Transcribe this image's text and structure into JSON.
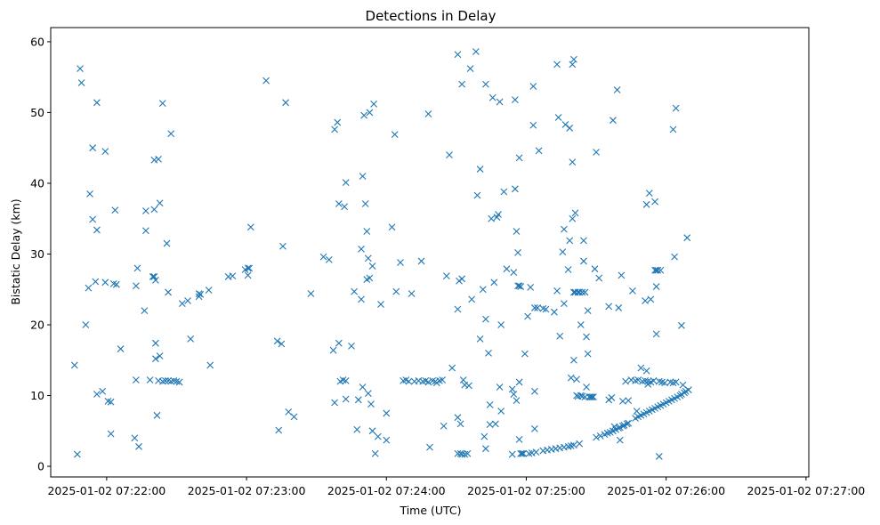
{
  "chart_data": {
    "type": "scatter",
    "title": "Detections in Delay",
    "xlabel": "Time (UTC)",
    "ylabel": "Bistatic Delay (km)",
    "marker": "x",
    "color": "#1f77b4",
    "x_unit": "minutes after 2025-01-02 07:21:00",
    "xlim": [
      0.6,
      6.02
    ],
    "ylim": [
      -1.5,
      62
    ],
    "xticks": [
      {
        "value": 1,
        "label": "2025-01-02 07:22:00"
      },
      {
        "value": 2,
        "label": "2025-01-02 07:23:00"
      },
      {
        "value": 3,
        "label": "2025-01-02 07:24:00"
      },
      {
        "value": 4,
        "label": "2025-01-02 07:25:00"
      },
      {
        "value": 5,
        "label": "2025-01-02 07:26:00"
      },
      {
        "value": 6,
        "label": "2025-01-02 07:27:00"
      }
    ],
    "yticks": [
      {
        "value": 0,
        "label": "0"
      },
      {
        "value": 10,
        "label": "10"
      },
      {
        "value": 20,
        "label": "20"
      },
      {
        "value": 30,
        "label": "30"
      },
      {
        "value": 40,
        "label": "40"
      },
      {
        "value": 50,
        "label": "50"
      },
      {
        "value": 60,
        "label": "60"
      }
    ],
    "points": [
      [
        0.77,
        14.3
      ],
      [
        0.79,
        1.7
      ],
      [
        0.81,
        56.2
      ],
      [
        0.82,
        54.2
      ],
      [
        0.85,
        20.0
      ],
      [
        0.87,
        25.2
      ],
      [
        0.88,
        38.5
      ],
      [
        0.9,
        45.0
      ],
      [
        0.9,
        34.9
      ],
      [
        0.92,
        26.1
      ],
      [
        0.93,
        51.4
      ],
      [
        0.93,
        33.4
      ],
      [
        0.93,
        10.2
      ],
      [
        0.97,
        10.6
      ],
      [
        0.99,
        44.5
      ],
      [
        0.99,
        26.0
      ],
      [
        1.01,
        9.2
      ],
      [
        1.03,
        4.6
      ],
      [
        1.03,
        9.1
      ],
      [
        1.05,
        25.8
      ],
      [
        1.06,
        36.2
      ],
      [
        1.07,
        25.7
      ],
      [
        1.1,
        16.6
      ],
      [
        1.2,
        4.0
      ],
      [
        1.21,
        25.5
      ],
      [
        1.21,
        12.2
      ],
      [
        1.22,
        28.0
      ],
      [
        1.23,
        2.8
      ],
      [
        1.27,
        22.0
      ],
      [
        1.28,
        36.1
      ],
      [
        1.28,
        33.3
      ],
      [
        1.31,
        12.2
      ],
      [
        1.33,
        26.8
      ],
      [
        1.34,
        26.8
      ],
      [
        1.34,
        43.3
      ],
      [
        1.34,
        36.3
      ],
      [
        1.35,
        26.3
      ],
      [
        1.35,
        17.4
      ],
      [
        1.35,
        15.2
      ],
      [
        1.36,
        7.2
      ],
      [
        1.37,
        43.4
      ],
      [
        1.37,
        12.1
      ],
      [
        1.38,
        37.2
      ],
      [
        1.38,
        15.6
      ],
      [
        1.4,
        51.3
      ],
      [
        1.4,
        12.0
      ],
      [
        1.42,
        12.1
      ],
      [
        1.43,
        31.5
      ],
      [
        1.44,
        24.6
      ],
      [
        1.44,
        12.1
      ],
      [
        1.46,
        12.0
      ],
      [
        1.46,
        47.0
      ],
      [
        1.48,
        12.1
      ],
      [
        1.5,
        12.0
      ],
      [
        1.52,
        11.9
      ],
      [
        1.54,
        23.0
      ],
      [
        1.58,
        23.4
      ],
      [
        1.6,
        18.0
      ],
      [
        1.66,
        24.4
      ],
      [
        1.66,
        24.0
      ],
      [
        1.67,
        24.3
      ],
      [
        1.73,
        24.9
      ],
      [
        1.74,
        14.3
      ],
      [
        1.87,
        26.8
      ],
      [
        1.9,
        26.9
      ],
      [
        1.99,
        27.8
      ],
      [
        2.01,
        27.0
      ],
      [
        2.01,
        28.0
      ],
      [
        2.02,
        28.0
      ],
      [
        2.03,
        33.8
      ],
      [
        2.14,
        54.5
      ],
      [
        2.22,
        17.7
      ],
      [
        2.23,
        5.1
      ],
      [
        2.25,
        17.3
      ],
      [
        2.26,
        31.1
      ],
      [
        2.28,
        51.4
      ],
      [
        2.3,
        7.7
      ],
      [
        2.34,
        7.0
      ],
      [
        2.46,
        24.4
      ],
      [
        2.55,
        29.6
      ],
      [
        2.59,
        29.2
      ],
      [
        2.62,
        16.4
      ],
      [
        2.63,
        47.6
      ],
      [
        2.63,
        9.0
      ],
      [
        2.65,
        48.6
      ],
      [
        2.66,
        37.1
      ],
      [
        2.66,
        17.4
      ],
      [
        2.67,
        12.0
      ],
      [
        2.69,
        12.2
      ],
      [
        2.7,
        36.7
      ],
      [
        2.71,
        40.1
      ],
      [
        2.71,
        9.5
      ],
      [
        2.71,
        12.1
      ],
      [
        2.75,
        17.0
      ],
      [
        2.77,
        24.7
      ],
      [
        2.79,
        5.2
      ],
      [
        2.8,
        9.4
      ],
      [
        2.82,
        30.7
      ],
      [
        2.82,
        23.6
      ],
      [
        2.83,
        11.2
      ],
      [
        2.83,
        41.0
      ],
      [
        2.84,
        49.6
      ],
      [
        2.85,
        37.1
      ],
      [
        2.86,
        33.2
      ],
      [
        2.86,
        26.4
      ],
      [
        2.87,
        10.3
      ],
      [
        2.87,
        29.4
      ],
      [
        2.88,
        26.6
      ],
      [
        2.88,
        50.0
      ],
      [
        2.89,
        8.8
      ],
      [
        2.9,
        5.0
      ],
      [
        2.9,
        28.3
      ],
      [
        2.91,
        51.2
      ],
      [
        2.92,
        1.8
      ],
      [
        2.94,
        4.2
      ],
      [
        2.96,
        22.9
      ],
      [
        3.0,
        7.5
      ],
      [
        3.0,
        3.7
      ],
      [
        3.04,
        33.8
      ],
      [
        3.06,
        46.9
      ],
      [
        3.07,
        24.7
      ],
      [
        3.1,
        28.8
      ],
      [
        3.12,
        12.1
      ],
      [
        3.14,
        12.2
      ],
      [
        3.16,
        12.0
      ],
      [
        3.18,
        24.4
      ],
      [
        3.2,
        12.0
      ],
      [
        3.23,
        12.1
      ],
      [
        3.25,
        29.0
      ],
      [
        3.26,
        12.0
      ],
      [
        3.28,
        12.1
      ],
      [
        3.3,
        49.8
      ],
      [
        3.3,
        11.9
      ],
      [
        3.31,
        2.7
      ],
      [
        3.33,
        12.1
      ],
      [
        3.35,
        12.0
      ],
      [
        3.36,
        11.8
      ],
      [
        3.38,
        12.1
      ],
      [
        3.4,
        12.2
      ],
      [
        3.41,
        5.7
      ],
      [
        3.43,
        26.9
      ],
      [
        3.45,
        44.0
      ],
      [
        3.47,
        13.9
      ],
      [
        3.51,
        58.2
      ],
      [
        3.51,
        22.2
      ],
      [
        3.51,
        1.8
      ],
      [
        3.51,
        6.9
      ],
      [
        3.52,
        26.2
      ],
      [
        3.53,
        6.0
      ],
      [
        3.53,
        1.8
      ],
      [
        3.54,
        54.0
      ],
      [
        3.54,
        26.5
      ],
      [
        3.54,
        1.7
      ],
      [
        3.55,
        12.2
      ],
      [
        3.56,
        1.7
      ],
      [
        3.56,
        11.5
      ],
      [
        3.58,
        1.8
      ],
      [
        3.59,
        11.4
      ],
      [
        3.6,
        56.2
      ],
      [
        3.61,
        23.6
      ],
      [
        3.64,
        58.6
      ],
      [
        3.65,
        38.3
      ],
      [
        3.67,
        42.0
      ],
      [
        3.67,
        18.0
      ],
      [
        3.69,
        25.0
      ],
      [
        3.7,
        4.2
      ],
      [
        3.71,
        2.5
      ],
      [
        3.71,
        54.0
      ],
      [
        3.71,
        20.8
      ],
      [
        3.73,
        16.0
      ],
      [
        3.74,
        8.7
      ],
      [
        3.74,
        5.9
      ],
      [
        3.75,
        35.0
      ],
      [
        3.76,
        52.1
      ],
      [
        3.77,
        26.0
      ],
      [
        3.78,
        6.0
      ],
      [
        3.79,
        35.2
      ],
      [
        3.8,
        35.6
      ],
      [
        3.81,
        11.2
      ],
      [
        3.81,
        51.5
      ],
      [
        3.82,
        20.0
      ],
      [
        3.82,
        7.8
      ],
      [
        3.84,
        38.8
      ],
      [
        3.86,
        27.9
      ],
      [
        3.9,
        10.9
      ],
      [
        3.9,
        1.7
      ],
      [
        3.91,
        27.4
      ],
      [
        3.91,
        10.2
      ],
      [
        3.92,
        39.2
      ],
      [
        3.92,
        51.8
      ],
      [
        3.93,
        33.2
      ],
      [
        3.93,
        9.3
      ],
      [
        3.94,
        30.2
      ],
      [
        3.94,
        25.5
      ],
      [
        3.95,
        25.5
      ],
      [
        3.95,
        43.6
      ],
      [
        3.95,
        11.9
      ],
      [
        3.95,
        3.8
      ],
      [
        3.96,
        25.4
      ],
      [
        3.96,
        1.8
      ],
      [
        3.97,
        1.8
      ],
      [
        3.98,
        1.8
      ],
      [
        3.99,
        15.9
      ],
      [
        4.01,
        21.2
      ],
      [
        4.02,
        1.8
      ],
      [
        4.03,
        25.3
      ],
      [
        4.04,
        1.9
      ],
      [
        4.05,
        53.7
      ],
      [
        4.05,
        48.2
      ],
      [
        4.06,
        22.4
      ],
      [
        4.06,
        10.6
      ],
      [
        4.06,
        5.3
      ],
      [
        4.07,
        2.0
      ],
      [
        4.08,
        22.4
      ],
      [
        4.09,
        44.6
      ],
      [
        4.12,
        22.3
      ],
      [
        4.12,
        2.2
      ],
      [
        4.14,
        22.2
      ],
      [
        4.15,
        2.3
      ],
      [
        4.18,
        2.4
      ],
      [
        4.2,
        21.8
      ],
      [
        4.21,
        2.5
      ],
      [
        4.22,
        24.8
      ],
      [
        4.22,
        56.8
      ],
      [
        4.23,
        49.3
      ],
      [
        4.24,
        2.6
      ],
      [
        4.24,
        18.4
      ],
      [
        4.26,
        30.3
      ],
      [
        4.27,
        2.7
      ],
      [
        4.27,
        33.5
      ],
      [
        4.27,
        23.0
      ],
      [
        4.28,
        48.3
      ],
      [
        4.3,
        2.8
      ],
      [
        4.3,
        27.8
      ],
      [
        4.31,
        47.8
      ],
      [
        4.31,
        31.9
      ],
      [
        4.32,
        12.5
      ],
      [
        4.32,
        2.9
      ],
      [
        4.33,
        56.8
      ],
      [
        4.33,
        43.0
      ],
      [
        4.33,
        35.0
      ],
      [
        4.34,
        57.5
      ],
      [
        4.34,
        24.6
      ],
      [
        4.34,
        15.0
      ],
      [
        4.34,
        3.0
      ],
      [
        4.35,
        35.8
      ],
      [
        4.35,
        24.6
      ],
      [
        4.36,
        10.0
      ],
      [
        4.36,
        12.3
      ],
      [
        4.37,
        24.6
      ],
      [
        4.37,
        9.9
      ],
      [
        4.38,
        24.6
      ],
      [
        4.38,
        3.2
      ],
      [
        4.39,
        20.0
      ],
      [
        4.39,
        10.0
      ],
      [
        4.4,
        24.6
      ],
      [
        4.4,
        9.9
      ],
      [
        4.41,
        31.9
      ],
      [
        4.41,
        29.0
      ],
      [
        4.42,
        24.6
      ],
      [
        4.42,
        9.8
      ],
      [
        4.43,
        18.3
      ],
      [
        4.43,
        11.2
      ],
      [
        4.44,
        15.9
      ],
      [
        4.44,
        22.0
      ],
      [
        4.45,
        9.8
      ],
      [
        4.46,
        9.8
      ],
      [
        4.47,
        9.8
      ],
      [
        4.48,
        9.8
      ],
      [
        4.49,
        27.9
      ],
      [
        4.5,
        4.1
      ],
      [
        4.5,
        44.4
      ],
      [
        4.52,
        26.6
      ],
      [
        4.53,
        4.3
      ],
      [
        4.56,
        4.5
      ],
      [
        4.58,
        4.7
      ],
      [
        4.59,
        9.4
      ],
      [
        4.59,
        22.6
      ],
      [
        4.6,
        4.8
      ],
      [
        4.61,
        9.7
      ],
      [
        4.62,
        48.9
      ],
      [
        4.62,
        5.0
      ],
      [
        4.63,
        5.6
      ],
      [
        4.64,
        5.2
      ],
      [
        4.65,
        53.2
      ],
      [
        4.66,
        22.4
      ],
      [
        4.66,
        5.4
      ],
      [
        4.67,
        3.7
      ],
      [
        4.67,
        5.5
      ],
      [
        4.68,
        27.0
      ],
      [
        4.69,
        9.2
      ],
      [
        4.69,
        5.7
      ],
      [
        4.7,
        5.8
      ],
      [
        4.71,
        12.0
      ],
      [
        4.72,
        6.0
      ],
      [
        4.73,
        9.3
      ],
      [
        4.73,
        6.1
      ],
      [
        4.75,
        12.2
      ],
      [
        4.76,
        24.8
      ],
      [
        4.78,
        6.8
      ],
      [
        4.78,
        12.1
      ],
      [
        4.79,
        7.8
      ],
      [
        4.8,
        7.0
      ],
      [
        4.8,
        12.2
      ],
      [
        4.82,
        13.9
      ],
      [
        4.82,
        7.2
      ],
      [
        4.83,
        12.0
      ],
      [
        4.84,
        7.4
      ],
      [
        4.85,
        23.4
      ],
      [
        4.85,
        12.1
      ],
      [
        4.86,
        37.0
      ],
      [
        4.86,
        13.5
      ],
      [
        4.86,
        7.6
      ],
      [
        4.87,
        12.0
      ],
      [
        4.87,
        11.6
      ],
      [
        4.88,
        38.6
      ],
      [
        4.88,
        7.8
      ],
      [
        4.89,
        23.6
      ],
      [
        4.89,
        11.9
      ],
      [
        4.9,
        8.0
      ],
      [
        4.91,
        12.1
      ],
      [
        4.92,
        37.4
      ],
      [
        4.92,
        27.7
      ],
      [
        4.92,
        8.2
      ],
      [
        4.93,
        25.4
      ],
      [
        4.93,
        18.7
      ],
      [
        4.93,
        27.7
      ],
      [
        4.94,
        27.7
      ],
      [
        4.94,
        8.4
      ],
      [
        4.95,
        12.0
      ],
      [
        4.95,
        1.4
      ],
      [
        4.96,
        27.7
      ],
      [
        4.96,
        8.6
      ],
      [
        4.97,
        11.9
      ],
      [
        4.98,
        8.8
      ],
      [
        4.99,
        11.8
      ],
      [
        5.0,
        9.0
      ],
      [
        5.02,
        9.2
      ],
      [
        5.03,
        11.9
      ],
      [
        5.04,
        9.4
      ],
      [
        5.05,
        47.6
      ],
      [
        5.05,
        11.8
      ],
      [
        5.06,
        29.6
      ],
      [
        5.06,
        9.6
      ],
      [
        5.07,
        50.6
      ],
      [
        5.07,
        11.9
      ],
      [
        5.08,
        9.8
      ],
      [
        5.1,
        10.0
      ],
      [
        5.11,
        19.9
      ],
      [
        5.11,
        10.2
      ],
      [
        5.12,
        11.5
      ],
      [
        5.13,
        10.4
      ],
      [
        5.14,
        10.6
      ],
      [
        5.15,
        32.3
      ],
      [
        5.16,
        10.8
      ]
    ]
  }
}
